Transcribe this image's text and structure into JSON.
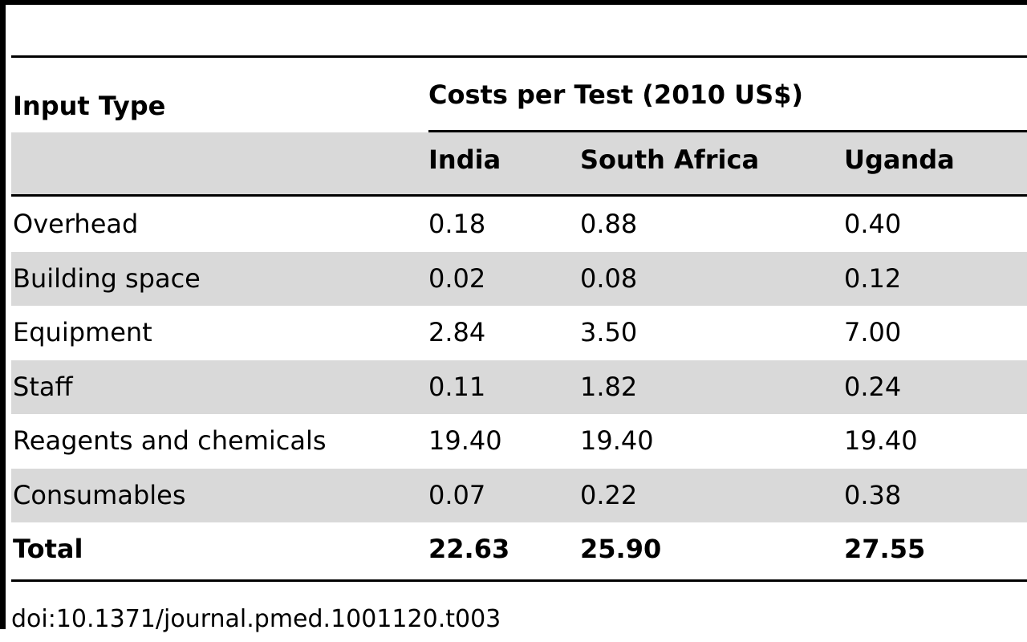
{
  "table": {
    "header": {
      "input_type": "Input Type",
      "group_label": "Costs per Test (2010 US$)",
      "countries": [
        "India",
        "South Africa",
        "Uganda"
      ]
    },
    "rows": [
      {
        "label": "Overhead",
        "values": [
          "0.18",
          "0.88",
          "0.40"
        ]
      },
      {
        "label": "Building space",
        "values": [
          "0.02",
          "0.08",
          "0.12"
        ]
      },
      {
        "label": "Equipment",
        "values": [
          "2.84",
          "3.50",
          "7.00"
        ]
      },
      {
        "label": "Staff",
        "values": [
          "0.11",
          "1.82",
          "0.24"
        ]
      },
      {
        "label": "Reagents and chemicals",
        "values": [
          "19.40",
          "19.40",
          "19.40"
        ]
      },
      {
        "label": "Consumables",
        "values": [
          "0.07",
          "0.22",
          "0.38"
        ]
      }
    ],
    "total": {
      "label": "Total",
      "values": [
        "22.63",
        "25.90",
        "27.55"
      ]
    }
  },
  "footer": {
    "doi": "doi:10.1371/journal.pmed.1001120.t003"
  },
  "colors": {
    "rule": "#000000",
    "band": "#d9d9d9",
    "text": "#000000"
  }
}
